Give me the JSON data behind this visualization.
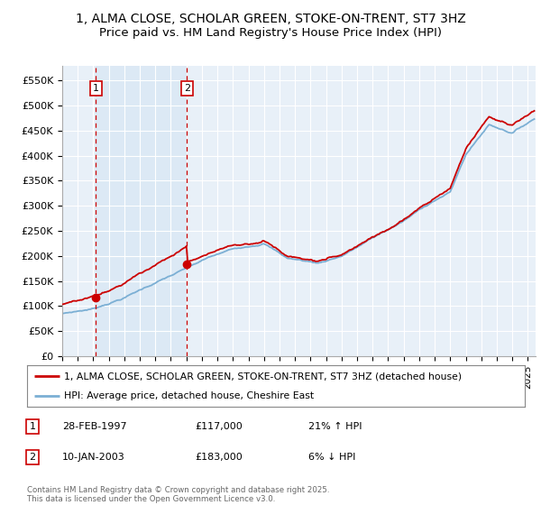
{
  "title": "1, ALMA CLOSE, SCHOLAR GREEN, STOKE-ON-TRENT, ST7 3HZ",
  "subtitle": "Price paid vs. HM Land Registry's House Price Index (HPI)",
  "xlim_start": 1995.0,
  "xlim_end": 2025.5,
  "ylim_bottom": 0,
  "ylim_top": 580000,
  "yticks": [
    0,
    50000,
    100000,
    150000,
    200000,
    250000,
    300000,
    350000,
    400000,
    450000,
    500000,
    550000
  ],
  "ytick_labels": [
    "£0",
    "£50K",
    "£100K",
    "£150K",
    "£200K",
    "£250K",
    "£300K",
    "£350K",
    "£400K",
    "£450K",
    "£500K",
    "£550K"
  ],
  "sale1_date": 1997.16,
  "sale1_price": 117000,
  "sale1_label": "1",
  "sale2_date": 2003.03,
  "sale2_price": 183000,
  "sale2_label": "2",
  "hpi_color": "#7bafd4",
  "sale_line_color": "#cc0000",
  "vline_color": "#cc0000",
  "span_color": "#dce9f5",
  "plot_bg": "#e8f0f8",
  "grid_color": "#ffffff",
  "legend_label_red": "1, ALMA CLOSE, SCHOLAR GREEN, STOKE-ON-TRENT, ST7 3HZ (detached house)",
  "legend_label_blue": "HPI: Average price, detached house, Cheshire East",
  "table_row1": [
    "1",
    "28-FEB-1997",
    "£117,000",
    "21% ↑ HPI"
  ],
  "table_row2": [
    "2",
    "10-JAN-2003",
    "£183,000",
    "6% ↓ HPI"
  ],
  "footnote": "Contains HM Land Registry data © Crown copyright and database right 2025.\nThis data is licensed under the Open Government Licence v3.0.",
  "title_fontsize": 10,
  "subtitle_fontsize": 9.5
}
